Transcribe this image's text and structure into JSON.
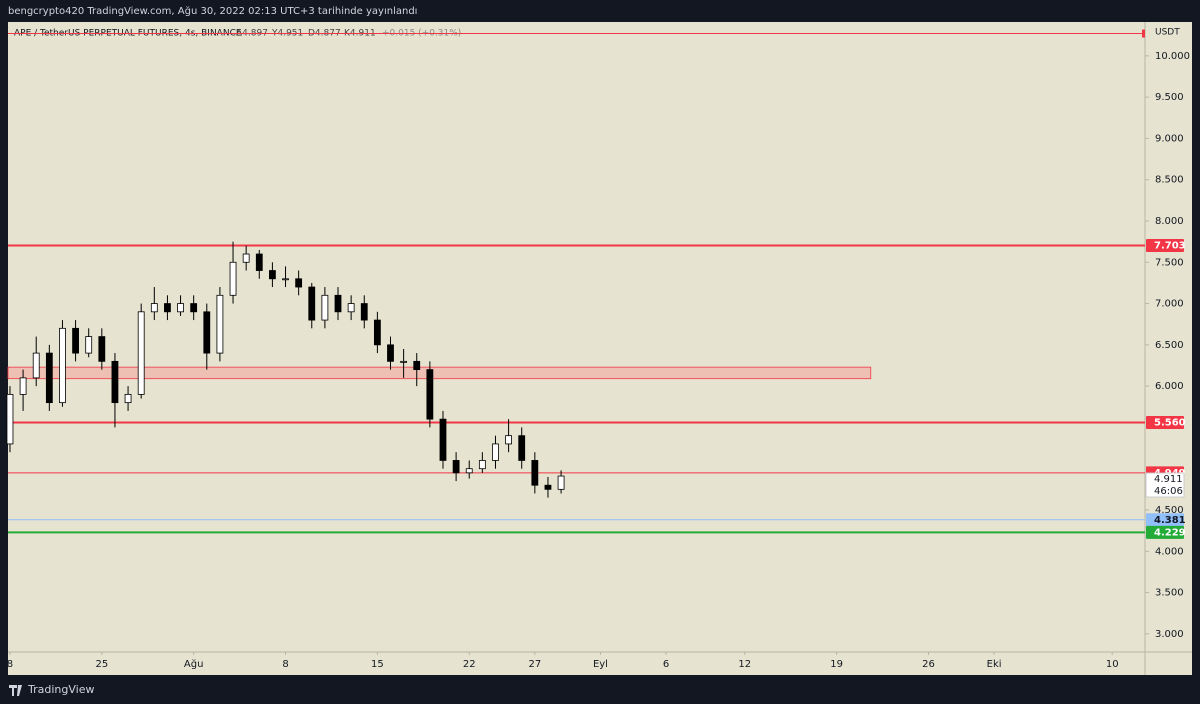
{
  "header": {
    "title": "bengcrypto420 TradingView.com, Ağu 30, 2022 02:13 UTC+3 tarihinde yayınlandı"
  },
  "chart_data": {
    "type": "candlestick",
    "symbol": "APE / TetherUS PERPETUAL FUTURES, 4s, BINANCE",
    "ohlc_legend": [
      "A4.897",
      "Y4.951",
      "D4.877",
      "K4.911",
      "+0.015 (+0.31%)"
    ],
    "axis_unit": "USDT",
    "x": [
      0,
      1,
      2,
      3,
      4,
      5,
      6,
      7,
      8,
      9,
      10,
      11,
      12,
      13,
      14,
      15,
      16,
      17,
      18,
      19,
      20,
      21,
      22,
      23,
      24,
      25,
      26,
      27,
      28,
      29,
      30,
      31,
      32,
      33,
      34,
      35,
      36,
      37,
      38,
      39,
      40,
      41,
      42
    ],
    "open": [
      5.3,
      5.9,
      6.1,
      6.4,
      5.8,
      6.7,
      6.4,
      6.6,
      6.3,
      5.8,
      5.9,
      6.9,
      7.0,
      6.9,
      7.0,
      6.9,
      6.4,
      7.1,
      7.5,
      7.6,
      7.4,
      7.3,
      7.3,
      7.2,
      6.8,
      7.1,
      6.9,
      7.0,
      6.8,
      6.5,
      6.3,
      6.3,
      6.2,
      5.6,
      5.1,
      4.95,
      5.0,
      5.1,
      5.3,
      5.4,
      5.1,
      4.8,
      4.75
    ],
    "high": [
      6.0,
      6.2,
      6.6,
      6.5,
      6.8,
      6.8,
      6.7,
      6.7,
      6.4,
      6.0,
      7.0,
      7.2,
      7.1,
      7.1,
      7.1,
      7.0,
      7.2,
      7.75,
      7.7,
      7.65,
      7.5,
      7.45,
      7.4,
      7.25,
      7.2,
      7.2,
      7.1,
      7.1,
      6.9,
      6.6,
      6.45,
      6.4,
      6.3,
      5.7,
      5.2,
      5.1,
      5.2,
      5.4,
      5.6,
      5.5,
      5.2,
      4.9,
      4.98
    ],
    "low": [
      5.2,
      5.7,
      6.0,
      5.7,
      5.75,
      6.3,
      6.35,
      6.2,
      5.5,
      5.7,
      5.85,
      6.8,
      6.8,
      6.85,
      6.8,
      6.2,
      6.3,
      7.0,
      7.4,
      7.3,
      7.2,
      7.2,
      7.1,
      6.7,
      6.7,
      6.8,
      6.8,
      6.7,
      6.4,
      6.2,
      6.1,
      6.0,
      5.5,
      5.0,
      4.85,
      4.88,
      4.95,
      5.0,
      5.2,
      5.0,
      4.7,
      4.65,
      4.7
    ],
    "close": [
      5.9,
      6.1,
      6.4,
      5.8,
      6.7,
      6.4,
      6.6,
      6.3,
      5.8,
      5.9,
      6.9,
      7.0,
      6.9,
      7.0,
      6.9,
      6.4,
      7.1,
      7.5,
      7.6,
      7.4,
      7.3,
      7.3,
      7.2,
      6.8,
      7.1,
      6.9,
      7.0,
      6.8,
      6.5,
      6.3,
      6.3,
      6.2,
      5.6,
      5.1,
      4.95,
      5.0,
      5.1,
      5.3,
      5.4,
      5.1,
      4.8,
      4.75,
      4.911
    ],
    "xlim": [
      -0.15,
      86.5
    ],
    "xticks": [
      {
        "value": 0,
        "label": "8"
      },
      {
        "value": 7,
        "label": "25"
      },
      {
        "value": 14,
        "label": "Ağu"
      },
      {
        "value": 21,
        "label": "8"
      },
      {
        "value": 28,
        "label": "15"
      },
      {
        "value": 35,
        "label": "22"
      },
      {
        "value": 40,
        "label": "27"
      },
      {
        "value": 45,
        "label": "Eyl"
      },
      {
        "value": 50,
        "label": "6"
      },
      {
        "value": 56,
        "label": "12"
      },
      {
        "value": 63,
        "label": "19"
      },
      {
        "value": 70,
        "label": "26"
      },
      {
        "value": 75,
        "label": "Eki"
      },
      {
        "value": 84,
        "label": "10"
      }
    ],
    "ylim": [
      2.78,
      10.41
    ],
    "yticks": [
      {
        "value": 10,
        "label": "10.000"
      },
      {
        "value": 9.5,
        "label": "9.500"
      },
      {
        "value": 9,
        "label": "9.000"
      },
      {
        "value": 8.5,
        "label": "8.500"
      },
      {
        "value": 8,
        "label": "8.000"
      },
      {
        "value": 7.5,
        "label": "7.500"
      },
      {
        "value": 7,
        "label": "7.000"
      },
      {
        "value": 6.5,
        "label": "6.500"
      },
      {
        "value": 6,
        "label": "6.000"
      },
      {
        "value": 4.5,
        "label": "4.500"
      },
      {
        "value": 4,
        "label": "4.000"
      },
      {
        "value": 3.5,
        "label": "3.500"
      },
      {
        "value": 3,
        "label": "3.000"
      }
    ],
    "levels": [
      {
        "value": 10.27,
        "color": "#f23645",
        "width": 1
      },
      {
        "value": 7.703,
        "label": "7.703",
        "color": "#f23645",
        "width": 2
      },
      {
        "value": 5.56,
        "label": "5.560",
        "color": "#f23645",
        "width": 2
      },
      {
        "value": 4.949,
        "label": "4.949",
        "color": "#f23645",
        "width": 1
      },
      {
        "value": 4.381,
        "label": "4.381",
        "color": "#90bff9",
        "width": 1
      },
      {
        "value": 4.229,
        "label": "4.229",
        "color": "#22ab37",
        "width": 2
      }
    ],
    "zone": {
      "low": 6.09,
      "high": 6.23,
      "x_end": 65.6,
      "color": "#f4a09a"
    },
    "last_price": {
      "value": 4.911,
      "label": "4.911",
      "countdown": "46:06"
    }
  },
  "footer": {
    "brand": "TradingView"
  }
}
